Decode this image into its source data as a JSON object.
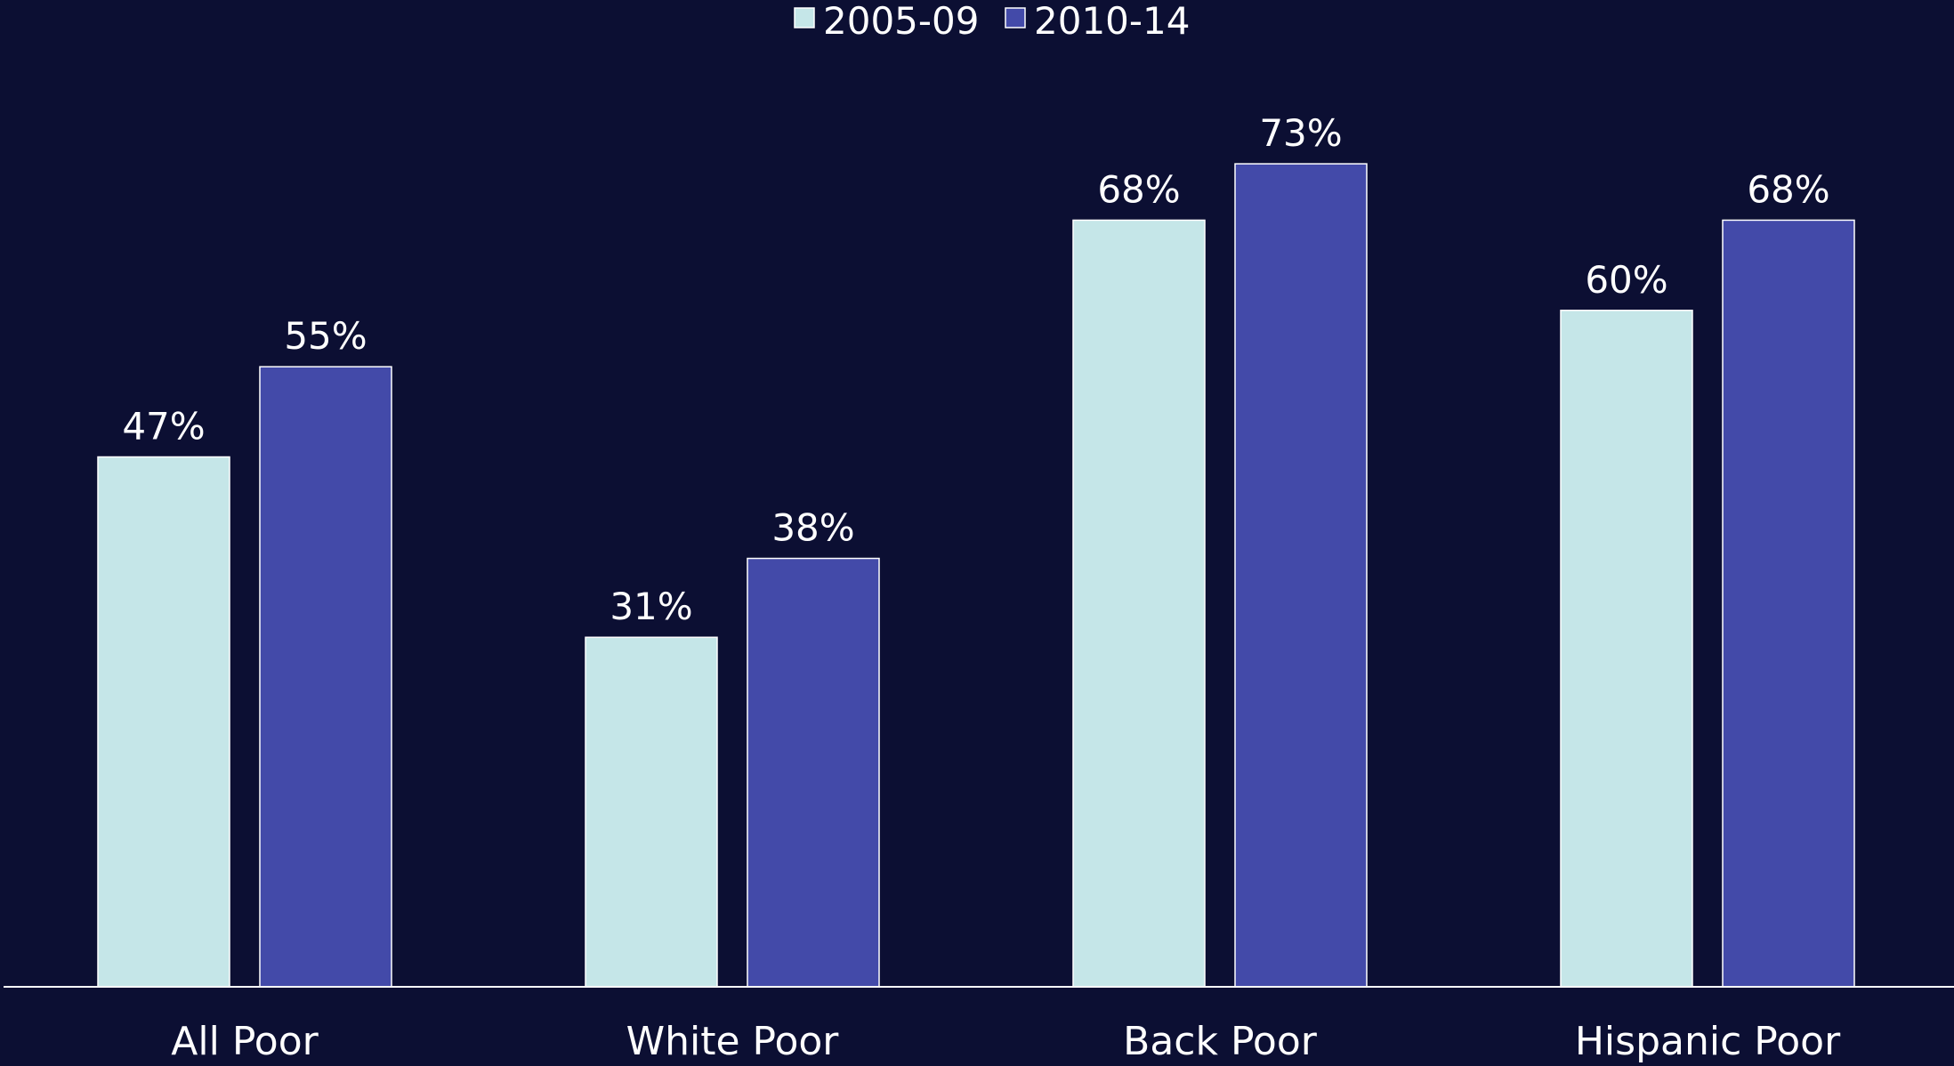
{
  "chart_data": {
    "type": "bar",
    "title": "",
    "xlabel": "",
    "ylabel": "",
    "categories": [
      "All Poor",
      "White Poor",
      "Back Poor",
      "Hispanic Poor"
    ],
    "series": [
      {
        "name": "2005-09",
        "values": [
          47,
          31,
          68,
          60
        ],
        "labels": [
          "47%",
          "31%",
          "68%",
          "60%"
        ],
        "color": "#c5e6e8"
      },
      {
        "name": "2010-14",
        "values": [
          55,
          38,
          73,
          68
        ],
        "labels": [
          "55%",
          "38%",
          "73%",
          "68%"
        ],
        "color": "#434aa9"
      }
    ],
    "ylim": [
      0,
      80
    ],
    "grid": false,
    "legend_position": "top-center",
    "colors": {
      "background": "#0c0f33",
      "text": "#ffffff",
      "axis": "#ffffff"
    }
  }
}
